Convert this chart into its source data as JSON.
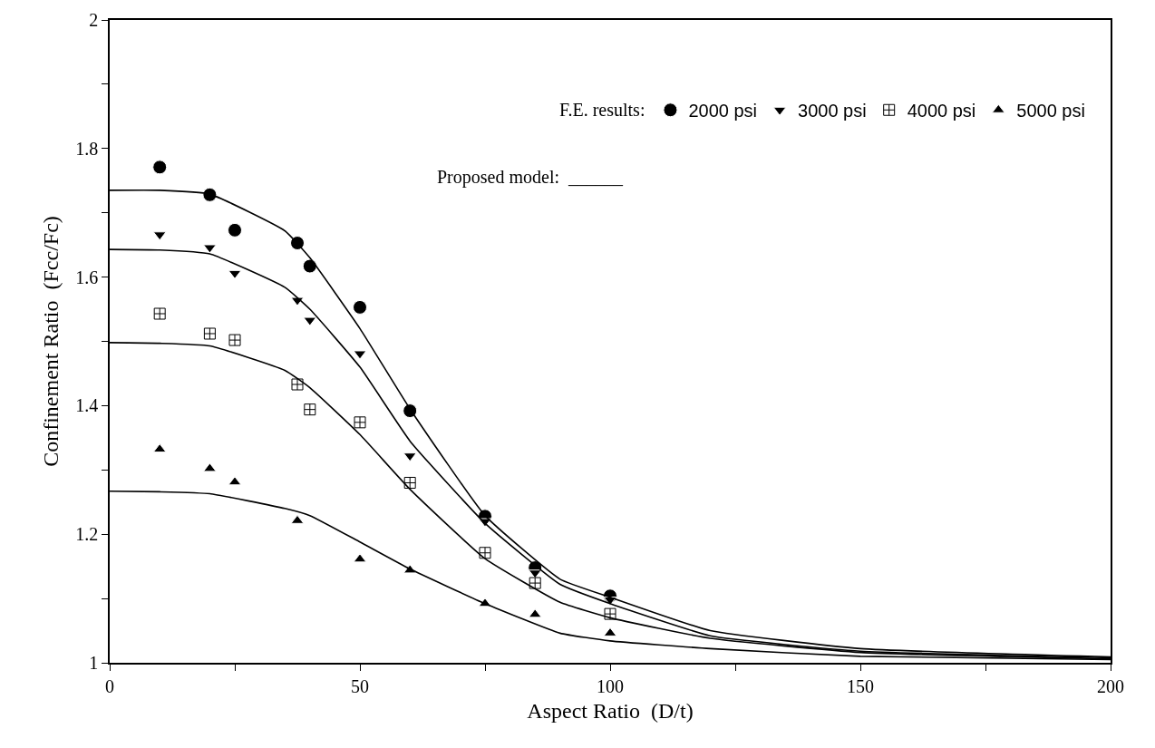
{
  "chart_data": {
    "type": "scatter",
    "xlabel": "Aspect Ratio  (D/t)",
    "ylabel": "Confinement Ratio  (Fcc/Fc)",
    "legend_title": "F.E. results:",
    "legend": "top right",
    "xlim": [
      0,
      200
    ],
    "ylim": [
      1,
      2
    ],
    "xticks": [
      0,
      {
        "value": 25,
        "label": null
      },
      50,
      {
        "value": 75,
        "label": null
      },
      100,
      {
        "value": 125,
        "label": null
      },
      150,
      {
        "value": 175,
        "label": null
      },
      200
    ],
    "yticks": [
      1,
      {
        "value": 1.1,
        "label": null
      },
      1.2,
      {
        "value": 1.3,
        "label": null
      },
      1.4,
      {
        "value": 1.5,
        "label": null
      },
      1.6,
      {
        "value": 1.7,
        "label": null
      },
      1.8,
      {
        "value": 1.9,
        "label": null
      },
      2
    ],
    "marker": "triangle",
    "annotations": [
      "Proposed model:  ______"
    ],
    "series": [
      {
        "name": "2000 psi",
        "marker": "circle",
        "color": "#000000",
        "x": [
          10,
          20,
          25,
          37.5,
          40,
          50,
          60,
          75,
          85,
          100
        ],
        "values": [
          1.771,
          1.728,
          1.673,
          1.653,
          1.617,
          1.553,
          1.392,
          1.228,
          1.148,
          1.104
        ]
      },
      {
        "name": "3000 psi",
        "color": "#000000",
        "x": [
          10,
          20,
          25,
          37.5,
          40,
          50,
          60,
          75,
          85,
          100
        ],
        "values": [
          1.666,
          1.646,
          1.606,
          1.564,
          1.533,
          1.481,
          1.322,
          1.22,
          1.14,
          1.098
        ]
      },
      {
        "name": "4000 psi",
        "marker": "cross",
        "color": "#000000",
        "x": [
          10,
          20,
          25,
          37.5,
          40,
          50,
          60,
          75,
          85,
          100
        ],
        "values": [
          1.543,
          1.512,
          1.502,
          1.433,
          1.394,
          1.374,
          1.28,
          1.171,
          1.124,
          1.076
        ]
      },
      {
        "name": "5000 psi",
        "marker": "triangle",
        "color": "#000000",
        "x": [
          10,
          20,
          25,
          37.5,
          50,
          60,
          75,
          85,
          100
        ],
        "values": [
          1.332,
          1.302,
          1.281,
          1.221,
          1.161,
          1.144,
          1.092,
          1.075,
          1.046
        ]
      },
      {
        "type": "line",
        "marker": "none",
        "color": "#000000",
        "x": [
          0,
          10,
          20,
          35,
          40,
          50,
          60,
          75,
          90,
          100,
          120,
          150,
          200
        ],
        "values": [
          1.735,
          1.735,
          1.729,
          1.672,
          1.63,
          1.52,
          1.395,
          1.229,
          1.13,
          1.102,
          1.05,
          1.022,
          1.009
        ]
      },
      {
        "type": "line",
        "marker": "none",
        "color": "#000000",
        "x": [
          0,
          10,
          20,
          35,
          40,
          50,
          60,
          75,
          90,
          100,
          120,
          150,
          200
        ],
        "values": [
          1.643,
          1.642,
          1.636,
          1.584,
          1.55,
          1.46,
          1.345,
          1.217,
          1.122,
          1.092,
          1.042,
          1.018,
          1.008
        ]
      },
      {
        "type": "line",
        "marker": "none",
        "color": "#000000",
        "x": [
          0,
          10,
          20,
          35,
          40,
          50,
          60,
          75,
          90,
          100,
          120,
          150,
          200
        ],
        "values": [
          1.498,
          1.497,
          1.493,
          1.455,
          1.428,
          1.355,
          1.27,
          1.162,
          1.094,
          1.07,
          1.038,
          1.016,
          1.006
        ]
      },
      {
        "type": "line",
        "marker": "none",
        "color": "#000000",
        "x": [
          0,
          10,
          20,
          35,
          40,
          50,
          60,
          75,
          90,
          100,
          120,
          150,
          200
        ],
        "values": [
          1.267,
          1.266,
          1.263,
          1.24,
          1.229,
          1.188,
          1.146,
          1.092,
          1.046,
          1.034,
          1.022,
          1.01,
          1.005
        ]
      }
    ]
  }
}
